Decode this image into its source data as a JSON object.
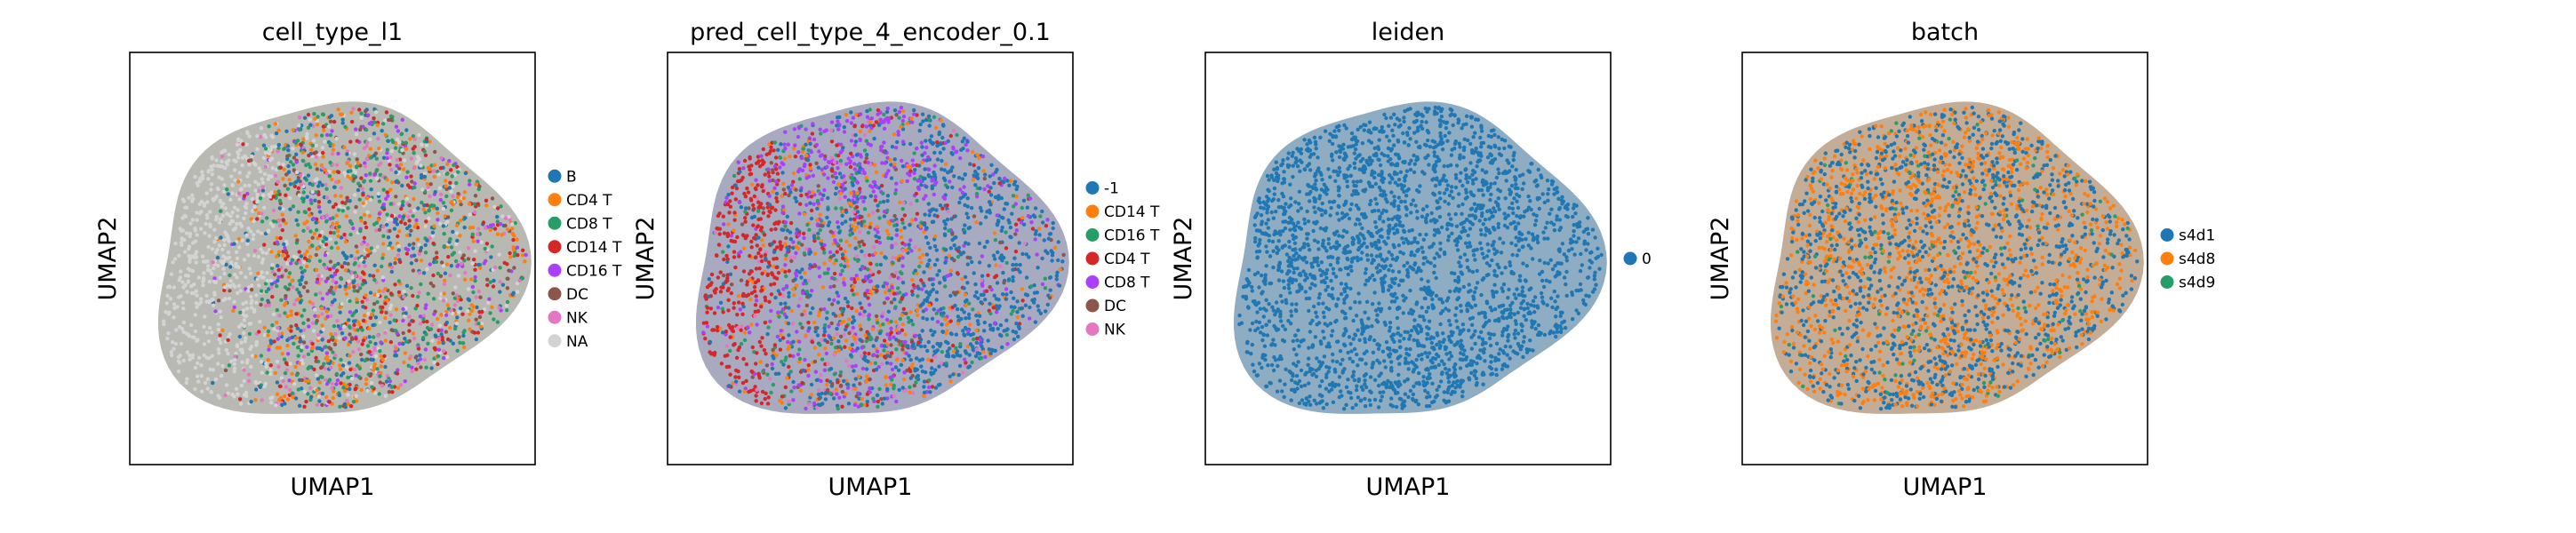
{
  "chart_data": [
    {
      "type": "scatter",
      "title": "cell_type_l1",
      "xlabel": "UMAP1",
      "ylabel": "UMAP2",
      "grid": false,
      "legend_position": "right",
      "series": [
        {
          "name": "B",
          "color": "#1f77b4"
        },
        {
          "name": "CD4 T",
          "color": "#ff7f0e"
        },
        {
          "name": "CD8 T",
          "color": "#279e68"
        },
        {
          "name": "CD14 T",
          "color": "#d62728"
        },
        {
          "name": "CD16 T",
          "color": "#aa40fc"
        },
        {
          "name": "DC",
          "color": "#8c564b"
        },
        {
          "name": "NK",
          "color": "#e377c2"
        },
        {
          "name": "NA",
          "color": "#d3d3d3"
        }
      ]
    },
    {
      "type": "scatter",
      "title": "pred_cell_type_4_encoder_0.1",
      "xlabel": "UMAP1",
      "ylabel": "UMAP2",
      "grid": false,
      "legend_position": "right",
      "series": [
        {
          "name": "-1",
          "color": "#1f77b4"
        },
        {
          "name": "CD14 T",
          "color": "#ff7f0e"
        },
        {
          "name": "CD16 T",
          "color": "#279e68"
        },
        {
          "name": "CD4 T",
          "color": "#d62728"
        },
        {
          "name": "CD8 T",
          "color": "#aa40fc"
        },
        {
          "name": "DC",
          "color": "#8c564b"
        },
        {
          "name": "NK",
          "color": "#e377c2"
        }
      ]
    },
    {
      "type": "scatter",
      "title": "leiden",
      "xlabel": "UMAP1",
      "ylabel": "UMAP2",
      "grid": false,
      "legend_position": "right",
      "series": [
        {
          "name": "0",
          "color": "#1f77b4"
        }
      ]
    },
    {
      "type": "scatter",
      "title": "batch",
      "xlabel": "UMAP1",
      "ylabel": "UMAP2",
      "grid": false,
      "legend_position": "right",
      "series": [
        {
          "name": "s4d1",
          "color": "#1f77b4"
        },
        {
          "name": "s4d8",
          "color": "#ff7f0e"
        },
        {
          "name": "s4d9",
          "color": "#279e68"
        }
      ]
    }
  ]
}
